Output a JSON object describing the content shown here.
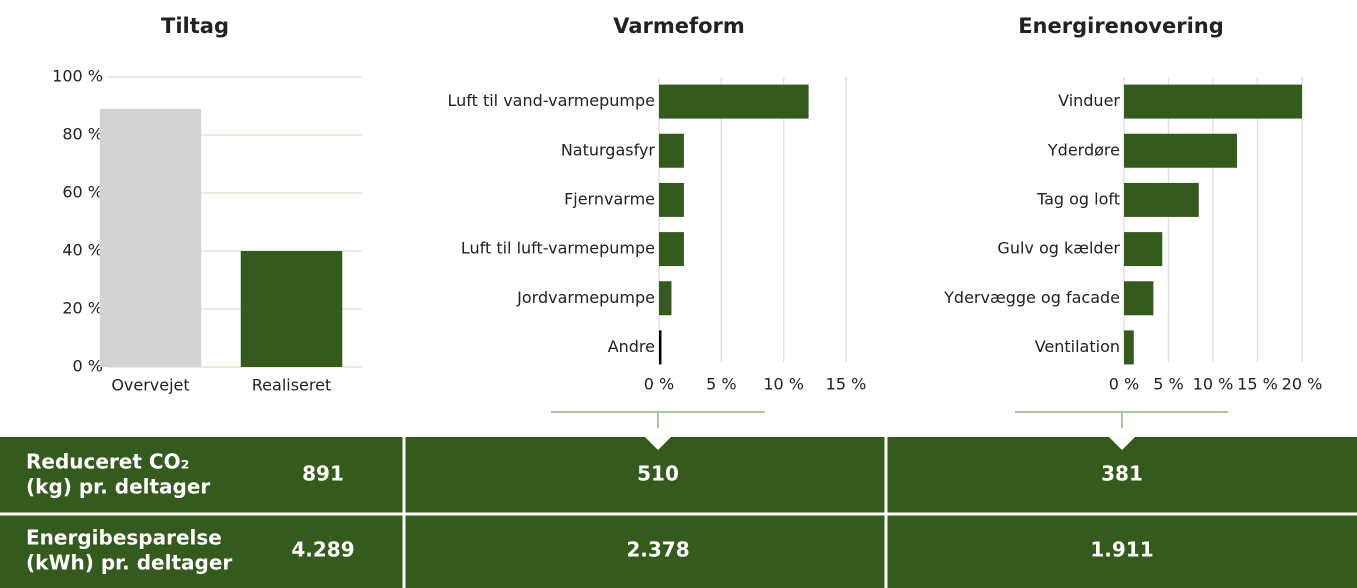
{
  "chart_data": [
    {
      "type": "bar",
      "title": "Tiltag",
      "categories": [
        "Overvejet",
        "Realiseret"
      ],
      "values": [
        89,
        40
      ],
      "colors": [
        "#d3d3d3",
        "#355a1e"
      ],
      "ylim": [
        0,
        100
      ],
      "yticks": [
        {
          "value": 0,
          "label": "0 %"
        },
        {
          "value": 20,
          "label": "20 %"
        },
        {
          "value": 40,
          "label": "40 %"
        },
        {
          "value": 60,
          "label": "60 %"
        },
        {
          "value": 80,
          "label": "80 %"
        },
        {
          "value": 100,
          "label": "100 %"
        }
      ],
      "grid": true
    },
    {
      "type": "barh",
      "title": "Varmeform",
      "categories": [
        "Luft til vand-varmepumpe",
        "Naturgasfyr",
        "Fjernvarme",
        "Luft til luft-varmepumpe",
        "Jordvarmepumpe",
        "Andre"
      ],
      "values": [
        12,
        2,
        2,
        2,
        1,
        0.2
      ],
      "color": "#355a1e",
      "xlim": [
        0,
        15
      ],
      "xticks": [
        {
          "value": 0,
          "label": "0 %"
        },
        {
          "value": 5,
          "label": "5 %"
        },
        {
          "value": 10,
          "label": "10 %"
        },
        {
          "value": 15,
          "label": "15 %"
        }
      ],
      "grid": true
    },
    {
      "type": "barh",
      "title": "Energirenovering",
      "categories": [
        "Vinduer",
        "Yderdøre",
        "Tag og loft",
        "Gulv og kælder",
        "Ydervægge og facade",
        "Ventilation"
      ],
      "values": [
        20,
        12.7,
        8.4,
        4.3,
        3.3,
        1.1
      ],
      "color": "#355a1e",
      "xlim": [
        0,
        20
      ],
      "xticks": [
        {
          "value": 0,
          "label": "0 %"
        },
        {
          "value": 5,
          "label": "5 %"
        },
        {
          "value": 10,
          "label": "10 %"
        },
        {
          "value": 15,
          "label": "15 %"
        },
        {
          "value": 20,
          "label": "20 %"
        }
      ],
      "grid": true
    }
  ],
  "table": {
    "rows": [
      {
        "label": [
          "Reduceret CO₂",
          "(kg) pr. deltager"
        ],
        "values": [
          "891",
          "510",
          "381"
        ]
      },
      {
        "label": [
          "Energibesparelse",
          "(kWh) pr. deltager"
        ],
        "values": [
          "4.289",
          "2.378",
          "1.911"
        ]
      }
    ]
  }
}
